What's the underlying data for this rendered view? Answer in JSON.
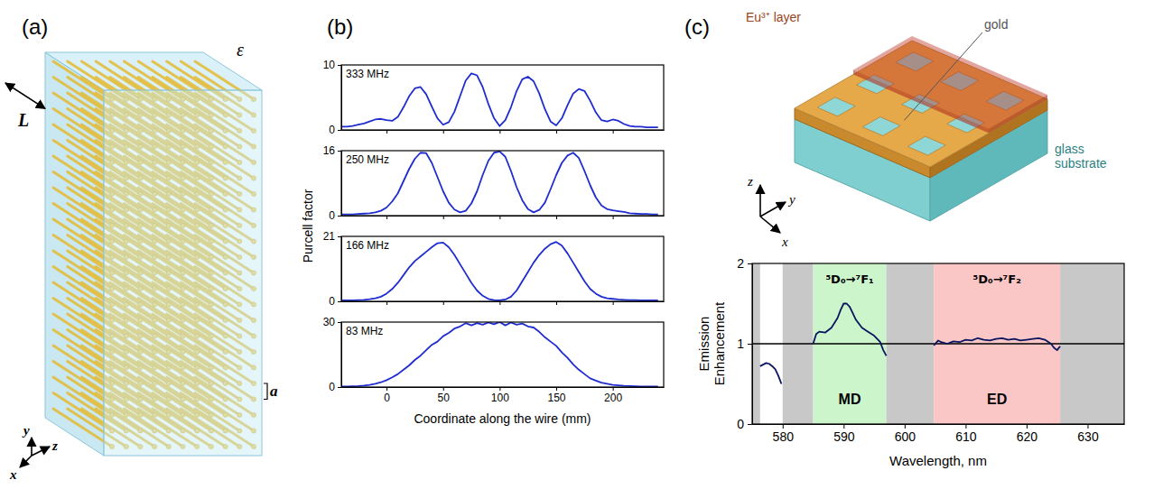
{
  "panel_labels": [
    "(a)",
    "(b)",
    "(c)"
  ],
  "diagram_a": {
    "medium_label": "ε",
    "length_label": "L",
    "period_label": "a",
    "axes": [
      "x",
      "y",
      "z"
    ]
  },
  "diagram_c": {
    "layer_label": "Eu³⁺ layer",
    "metal_label": "gold",
    "substrate_label": "glass substrate",
    "axes": [
      "x",
      "y",
      "z"
    ]
  },
  "chart_data": [
    {
      "type": "line",
      "title": "333 MHz",
      "ylabel": "Purcell factor",
      "x": [
        -40,
        -35,
        -30,
        -25,
        -20,
        -15,
        -10,
        -5,
        0,
        5,
        10,
        15,
        20,
        25,
        30,
        35,
        40,
        45,
        50,
        55,
        60,
        65,
        70,
        75,
        80,
        85,
        90,
        95,
        100,
        105,
        110,
        115,
        120,
        125,
        130,
        135,
        140,
        145,
        150,
        155,
        160,
        165,
        170,
        175,
        180,
        185,
        190,
        195,
        200,
        205,
        210,
        215,
        220,
        225,
        230,
        235,
        240
      ],
      "series": [
        {
          "color": "#1f2ccf",
          "values": [
            0.5,
            0.5,
            0.6,
            0.8,
            1.0,
            1.3,
            1.6,
            1.7,
            1.5,
            1.4,
            2.0,
            3.5,
            5.2,
            6.4,
            6.6,
            5.5,
            3.6,
            1.8,
            0.8,
            1.2,
            2.8,
            5.2,
            7.6,
            8.7,
            8.4,
            6.6,
            4.0,
            1.8,
            0.6,
            1.5,
            3.5,
            6.0,
            7.8,
            8.2,
            7.5,
            5.6,
            3.2,
            1.3,
            0.7,
            1.8,
            3.8,
            5.6,
            6.3,
            6.0,
            4.5,
            2.7,
            1.5,
            1.3,
            1.6,
            1.4,
            0.9,
            0.6,
            0.5,
            0.5,
            0.4,
            0.4,
            0.4
          ]
        }
      ],
      "xlim": [
        -40,
        245
      ],
      "ylim": [
        0,
        10
      ],
      "xticks": [
        0,
        50,
        100,
        150,
        200
      ],
      "yticks": [
        0,
        10
      ],
      "tick_labels": "y"
    },
    {
      "type": "line",
      "title": "250 MHz",
      "x": [
        -40,
        -35,
        -30,
        -25,
        -20,
        -15,
        -10,
        -5,
        0,
        5,
        10,
        15,
        20,
        25,
        30,
        35,
        40,
        45,
        50,
        55,
        60,
        65,
        70,
        75,
        80,
        85,
        90,
        95,
        100,
        105,
        110,
        115,
        120,
        125,
        130,
        135,
        140,
        145,
        150,
        155,
        160,
        165,
        170,
        175,
        180,
        185,
        190,
        195,
        200,
        205,
        210,
        215,
        220,
        225,
        230,
        235,
        240
      ],
      "series": [
        {
          "color": "#1f2ccf",
          "values": [
            0.3,
            0.3,
            0.3,
            0.4,
            0.5,
            0.6,
            0.8,
            1.2,
            2.0,
            3.5,
            5.5,
            8.5,
            11.5,
            14,
            15.5,
            15.4,
            13,
            9.5,
            6,
            3.2,
            1.5,
            0.8,
            1.2,
            3,
            6,
            10,
            13.5,
            15.5,
            15.8,
            14.5,
            11,
            7,
            3.8,
            1.6,
            0.8,
            1.4,
            3.2,
            6.5,
            10,
            13,
            14.8,
            15.5,
            14.2,
            11,
            7.5,
            4.5,
            2.5,
            1.6,
            1.3,
            1.1,
            0.9,
            0.6,
            0.5,
            0.4,
            0.4,
            0.3,
            0.3
          ]
        }
      ],
      "xlim": [
        -40,
        245
      ],
      "ylim": [
        0,
        16
      ],
      "xticks": [
        0,
        50,
        100,
        150,
        200
      ],
      "yticks": [
        0,
        16
      ],
      "tick_labels": "y"
    },
    {
      "type": "line",
      "title": "166 MHz",
      "x": [
        -40,
        -35,
        -30,
        -25,
        -20,
        -15,
        -10,
        -5,
        0,
        5,
        10,
        15,
        20,
        25,
        30,
        35,
        40,
        45,
        50,
        55,
        60,
        65,
        70,
        75,
        80,
        85,
        90,
        95,
        100,
        105,
        110,
        115,
        120,
        125,
        130,
        135,
        140,
        145,
        150,
        155,
        160,
        165,
        170,
        175,
        180,
        185,
        190,
        195,
        200,
        205,
        210,
        215,
        220,
        225,
        230,
        235,
        240
      ],
      "series": [
        {
          "color": "#1f2ccf",
          "values": [
            0.3,
            0.3,
            0.3,
            0.4,
            0.5,
            0.7,
            1.0,
            1.5,
            2.5,
            4,
            6,
            8.5,
            11,
            13,
            14.5,
            16,
            17.5,
            18.8,
            19,
            17.5,
            15,
            12,
            9,
            6,
            3.5,
            1.8,
            0.8,
            0.4,
            0.3,
            0.6,
            1.5,
            3.5,
            6.5,
            9.5,
            12.5,
            15,
            17,
            18.5,
            19.2,
            18,
            15.5,
            12.5,
            9.5,
            6.5,
            4,
            2.5,
            1.5,
            1,
            0.8,
            0.6,
            0.5,
            0.4,
            0.4,
            0.3,
            0.3,
            0.3,
            0.3
          ]
        }
      ],
      "xlim": [
        -40,
        245
      ],
      "ylim": [
        0,
        21
      ],
      "xticks": [
        0,
        50,
        100,
        150,
        200
      ],
      "yticks": [
        0,
        21
      ],
      "tick_labels": "y"
    },
    {
      "type": "line",
      "title": "83 MHz",
      "xlabel": "Coordinate along the wire (mm)",
      "x": [
        -40,
        -35,
        -30,
        -25,
        -20,
        -15,
        -10,
        -5,
        0,
        5,
        10,
        15,
        20,
        25,
        30,
        35,
        40,
        45,
        50,
        55,
        60,
        65,
        70,
        75,
        80,
        85,
        90,
        95,
        100,
        105,
        110,
        115,
        120,
        125,
        130,
        135,
        140,
        145,
        150,
        155,
        160,
        165,
        170,
        175,
        180,
        185,
        190,
        195,
        200,
        205,
        210,
        215,
        220,
        225,
        230,
        235,
        240
      ],
      "series": [
        {
          "color": "#1f2ccf",
          "values": [
            0.3,
            0.3,
            0.4,
            0.5,
            0.7,
            1.0,
            1.5,
            2.2,
            3.2,
            4.5,
            6,
            8,
            10,
            12.5,
            14.5,
            17,
            19.5,
            21,
            23.5,
            25,
            27,
            28,
            29.5,
            28.5,
            29.5,
            28.8,
            29.8,
            29,
            30,
            28.5,
            29.8,
            28.8,
            29.3,
            28,
            27.5,
            25.5,
            23,
            21,
            19,
            16,
            13.5,
            10.5,
            8,
            6,
            4,
            3,
            2,
            1.5,
            1,
            0.8,
            0.6,
            0.5,
            0.4,
            0.3,
            0.3,
            0.3,
            0.3
          ]
        }
      ],
      "xlim": [
        -40,
        245
      ],
      "ylim": [
        0,
        30
      ],
      "xticks": [
        0,
        50,
        100,
        150,
        200
      ],
      "yticks": [
        0,
        30
      ]
    },
    {
      "type": "line",
      "xlabel": "Wavelength, nm",
      "ylabel": "Emission Enhancement",
      "x": [
        576.3,
        576.8,
        577.3,
        577.8,
        578.3,
        578.8,
        579.3,
        579.8,
        582,
        585,
        585.5,
        586,
        587,
        588,
        589,
        589.5,
        590,
        590.5,
        591,
        591.5,
        592,
        593,
        594,
        595,
        596,
        596.5,
        597,
        601,
        604.8,
        605.5,
        606,
        607,
        608,
        609,
        610,
        611,
        612,
        613,
        614,
        615,
        616,
        617,
        618,
        619,
        620,
        621,
        622,
        623,
        624,
        624.5,
        625,
        625.5
      ],
      "series": [
        {
          "color": "#0a1560",
          "values": [
            0.72,
            0.74,
            0.76,
            0.75,
            0.72,
            0.68,
            0.6,
            0.5,
            null,
            1.0,
            1.12,
            1.15,
            1.14,
            1.2,
            1.32,
            1.42,
            1.5,
            1.5,
            1.46,
            1.38,
            1.3,
            1.2,
            1.15,
            1.1,
            1.02,
            0.92,
            0.85,
            null,
            0.98,
            1.04,
            1.02,
            1.0,
            1.03,
            1.02,
            1.05,
            1.04,
            1.07,
            1.05,
            1.04,
            1.06,
            1.07,
            1.05,
            1.06,
            1.04,
            1.05,
            1.06,
            1.07,
            1.05,
            1.0,
            0.95,
            0.92,
            0.97
          ]
        }
      ],
      "xlim": [
        575,
        636
      ],
      "ylim": [
        0,
        2
      ],
      "xticks": [
        580,
        590,
        600,
        610,
        620,
        630
      ],
      "yticks": [
        0,
        1,
        2
      ],
      "reference_line": 1,
      "bands": [
        {
          "range": [
            575,
            576.3
          ],
          "color": "#c8c8c8"
        },
        {
          "range": [
            580,
            585
          ],
          "color": "#c8c8c8"
        },
        {
          "range": [
            585,
            597
          ],
          "color": "#ccf5cc",
          "label": "MD",
          "title": "⁵D₀→⁷F₁"
        },
        {
          "range": [
            597,
            604.8
          ],
          "color": "#c8c8c8"
        },
        {
          "range": [
            604.8,
            625.5
          ],
          "color": "#fbc6c6",
          "label": "ED",
          "title": "⁵D₀→⁷F₂"
        },
        {
          "range": [
            625.5,
            636
          ],
          "color": "#c8c8c8"
        }
      ]
    }
  ]
}
